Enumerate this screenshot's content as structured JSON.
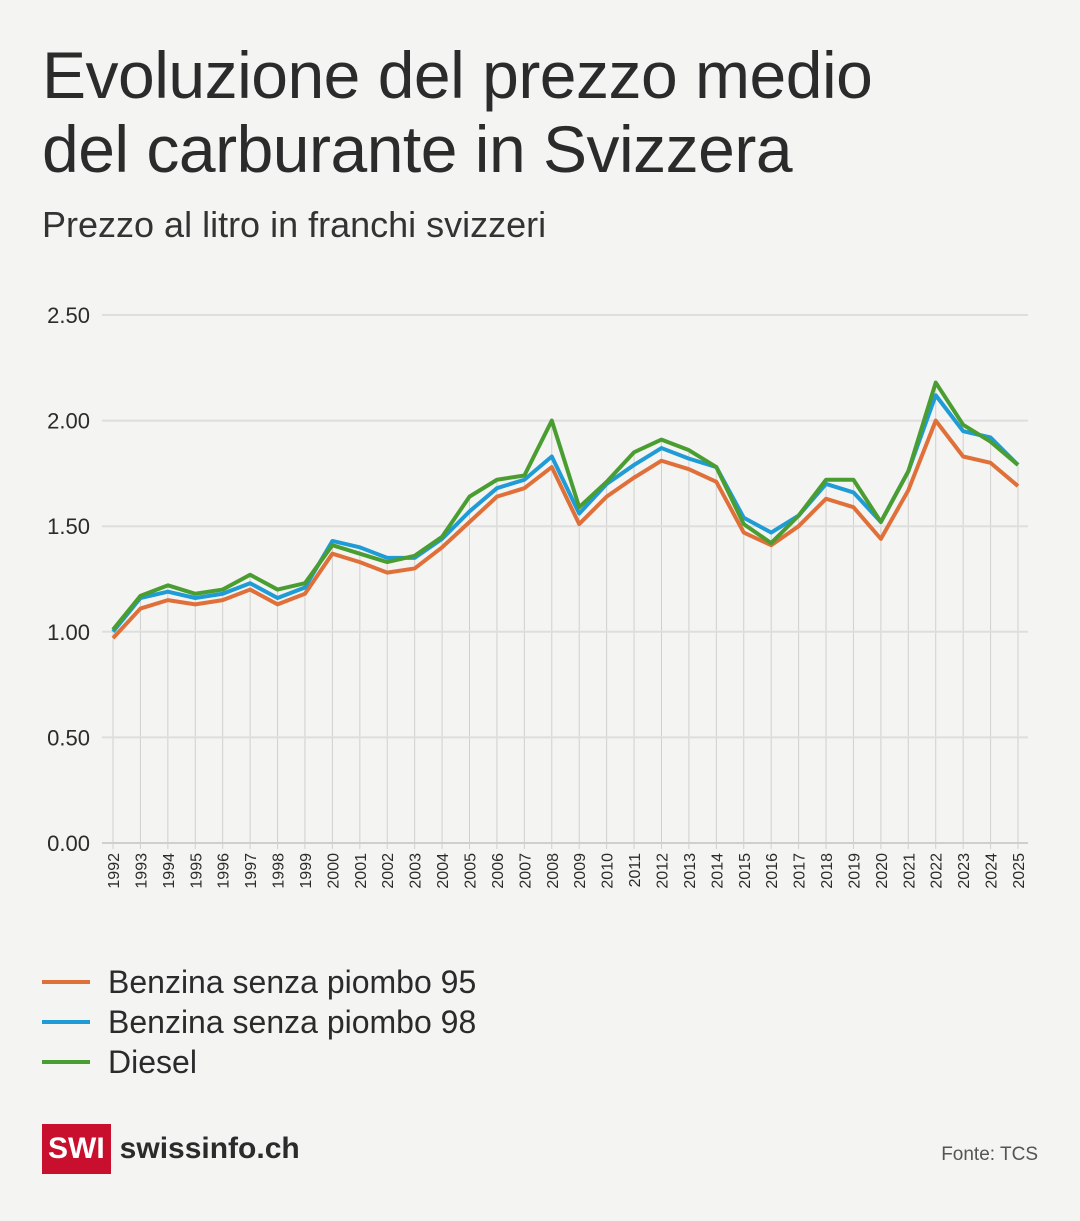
{
  "header": {
    "title_line1": "Evoluzione del prezzo medio",
    "title_line2": "del carburante in Svizzera",
    "subtitle": "Prezzo al litro in franchi svizzeri"
  },
  "footer": {
    "logo_mark": "SWI",
    "logo_text": "swissinfo.ch",
    "source": "Fonte: TCS"
  },
  "colors": {
    "bg": "#f4f4f2",
    "grid": "#dcdcdc",
    "benzina95": "#e0703a",
    "benzina98": "#1f9bd6",
    "diesel": "#4a9e31"
  },
  "chart_data": {
    "type": "line",
    "title": "Evoluzione del prezzo medio del carburante in Svizzera",
    "subtitle": "Prezzo al litro in franchi svizzeri",
    "xlabel": "",
    "ylabel": "",
    "ylim": [
      0,
      2.5
    ],
    "yticks": [
      "0.00",
      "0.50",
      "1.00",
      "1.50",
      "2.00",
      "2.50"
    ],
    "grid": true,
    "legend_position": "bottom-left",
    "x": [
      "1992",
      "1993",
      "1994",
      "1995",
      "1996",
      "1997",
      "1998",
      "1999",
      "2000",
      "2001",
      "2002",
      "2003",
      "2004",
      "2005",
      "2006",
      "2007",
      "2008",
      "2009",
      "2010",
      "2011",
      "2012",
      "2013",
      "2014",
      "2015",
      "2016",
      "2017",
      "2018",
      "2019",
      "2020",
      "2021",
      "2022",
      "2023",
      "2024",
      "2025"
    ],
    "series": [
      {
        "name": "Benzina senza piombo 95",
        "color": "#e0703a",
        "values": [
          0.97,
          1.11,
          1.15,
          1.13,
          1.15,
          1.2,
          1.13,
          1.18,
          1.37,
          1.33,
          1.28,
          1.3,
          1.4,
          1.52,
          1.64,
          1.68,
          1.78,
          1.51,
          1.64,
          1.73,
          1.81,
          1.77,
          1.71,
          1.47,
          1.41,
          1.5,
          1.63,
          1.59,
          1.44,
          1.67,
          2.0,
          1.83,
          1.8,
          1.69
        ]
      },
      {
        "name": "Benzina senza piombo 98",
        "color": "#1f9bd6",
        "values": [
          1.0,
          1.16,
          1.19,
          1.16,
          1.18,
          1.23,
          1.16,
          1.21,
          1.43,
          1.4,
          1.35,
          1.35,
          1.44,
          1.57,
          1.68,
          1.72,
          1.83,
          1.56,
          1.7,
          1.79,
          1.87,
          1.82,
          1.78,
          1.54,
          1.47,
          1.55,
          1.7,
          1.66,
          1.52,
          1.76,
          2.12,
          1.95,
          1.92,
          1.79
        ]
      },
      {
        "name": "Diesel",
        "color": "#4a9e31",
        "values": [
          1.01,
          1.17,
          1.22,
          1.18,
          1.2,
          1.27,
          1.2,
          1.23,
          1.41,
          1.37,
          1.33,
          1.36,
          1.45,
          1.64,
          1.72,
          1.74,
          2.0,
          1.59,
          1.71,
          1.85,
          1.91,
          1.86,
          1.78,
          1.51,
          1.42,
          1.55,
          1.72,
          1.72,
          1.52,
          1.76,
          2.18,
          1.98,
          1.9,
          1.79
        ]
      }
    ]
  }
}
